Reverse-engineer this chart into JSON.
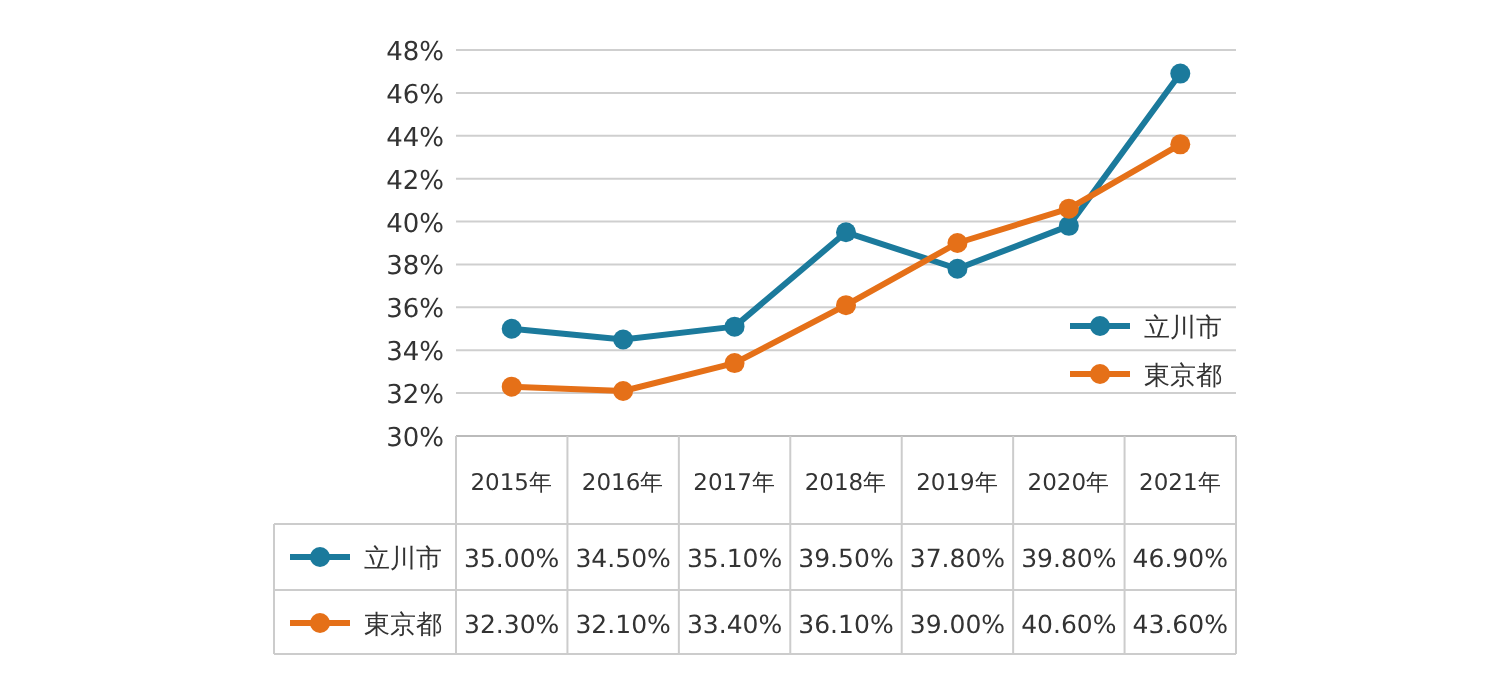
{
  "chart_data": {
    "type": "line",
    "categories": [
      "2015年",
      "2016年",
      "2017年",
      "2018年",
      "2019年",
      "2020年",
      "2021年"
    ],
    "series": [
      {
        "name": "立川市",
        "color": "#1b7a9c",
        "values": [
          35.0,
          34.5,
          35.1,
          39.5,
          37.8,
          39.8,
          46.9
        ],
        "value_labels": [
          "35.00%",
          "34.50%",
          "35.10%",
          "39.50%",
          "37.80%",
          "39.80%",
          "46.90%"
        ]
      },
      {
        "name": "東京都",
        "color": "#e57018",
        "values": [
          32.3,
          32.1,
          33.4,
          36.1,
          39.0,
          40.6,
          43.6
        ],
        "value_labels": [
          "32.30%",
          "32.10%",
          "33.40%",
          "36.10%",
          "39.00%",
          "40.60%",
          "43.60%"
        ]
      }
    ],
    "ylim": [
      30,
      48
    ],
    "yticks": [
      {
        "value": 30,
        "label": "30%"
      },
      {
        "value": 32,
        "label": "32%"
      },
      {
        "value": 34,
        "label": "34%"
      },
      {
        "value": 36,
        "label": "36%"
      },
      {
        "value": 38,
        "label": "38%"
      },
      {
        "value": 40,
        "label": "40%"
      },
      {
        "value": 42,
        "label": "42%"
      },
      {
        "value": 44,
        "label": "44%"
      },
      {
        "value": 46,
        "label": "46%"
      },
      {
        "value": 48,
        "label": "48%"
      }
    ],
    "grid": "y",
    "legend": "bottom right",
    "marker": "circle",
    "line_style": "solid"
  }
}
